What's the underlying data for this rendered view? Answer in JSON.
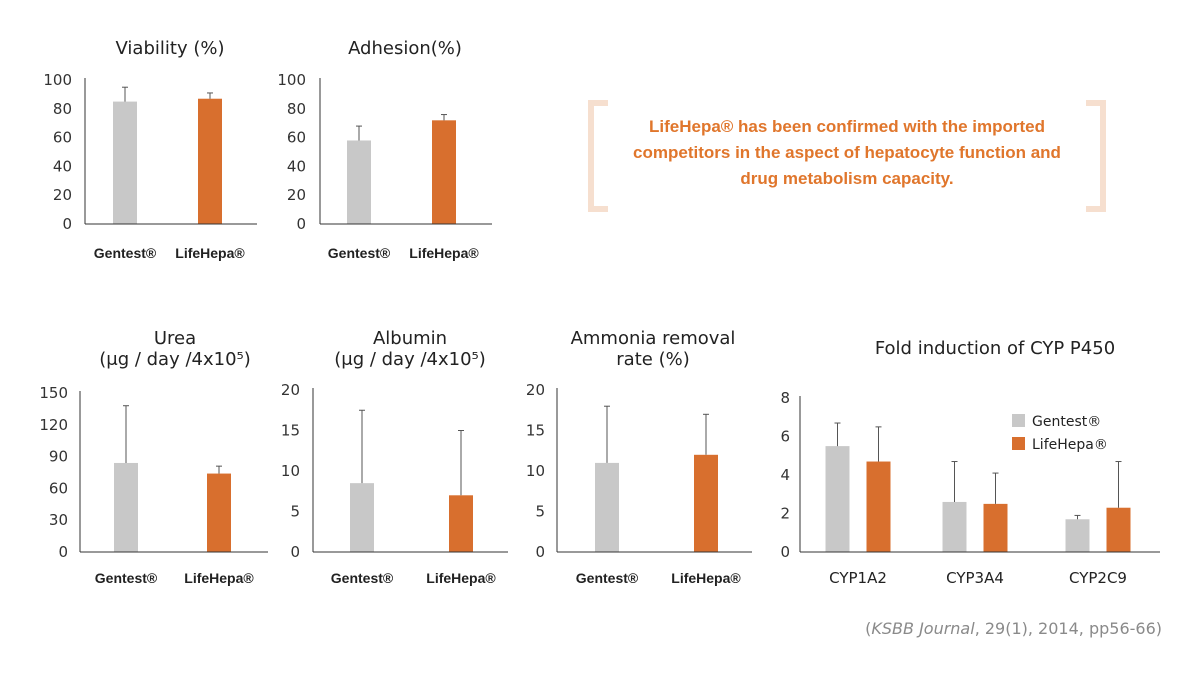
{
  "colors": {
    "gentest": "#c8c8c8",
    "lifehepa": "#d86f2e",
    "accent_text": "#e0762c",
    "bracket": "#f6dfcf"
  },
  "callout": {
    "line1": "LifeHepa® has been confirmed with the imported",
    "line2": "competitors in the aspect of hepatocyte function and",
    "line3": "drug metabolism capacity."
  },
  "source": {
    "open": "(",
    "journal": "KSBB Journal",
    "rest": ", 29(1), 2014, pp56-66)"
  },
  "chart_data": [
    {
      "id": "viability",
      "type": "bar",
      "title": [
        "Viability (%)"
      ],
      "categories": [
        "Gentest®",
        "LifeHepa®"
      ],
      "values": [
        85,
        87
      ],
      "errors": [
        10,
        4
      ],
      "ylim": [
        0,
        100
      ],
      "yticks": [
        0,
        20,
        40,
        60,
        80,
        100
      ]
    },
    {
      "id": "adhesion",
      "type": "bar",
      "title": [
        "Adhesion(%)"
      ],
      "categories": [
        "Gentest®",
        "LifeHepa®"
      ],
      "values": [
        58,
        72
      ],
      "errors": [
        10,
        4
      ],
      "ylim": [
        0,
        100
      ],
      "yticks": [
        0,
        20,
        40,
        60,
        80,
        100
      ]
    },
    {
      "id": "urea",
      "type": "bar",
      "title": [
        "Urea",
        "(μg / day /4x10⁵)"
      ],
      "categories": [
        "Gentest®",
        "LifeHepa®"
      ],
      "values": [
        84,
        74
      ],
      "errors": [
        54,
        7
      ],
      "ylim": [
        0,
        150
      ],
      "yticks": [
        0,
        30,
        60,
        90,
        120,
        150
      ]
    },
    {
      "id": "albumin",
      "type": "bar",
      "title": [
        "Albumin",
        "(μg / day /4x10⁵)"
      ],
      "categories": [
        "Gentest®",
        "LifeHepa®"
      ],
      "values": [
        8.5,
        7
      ],
      "errors": [
        9,
        8
      ],
      "ylim": [
        0,
        20
      ],
      "yticks": [
        0,
        5,
        10,
        15,
        20
      ]
    },
    {
      "id": "ammonia",
      "type": "bar",
      "title": [
        "Ammonia removal",
        "rate (%)"
      ],
      "categories": [
        "Gentest®",
        "LifeHepa®"
      ],
      "values": [
        11,
        12
      ],
      "errors": [
        7,
        5
      ],
      "ylim": [
        0,
        20
      ],
      "yticks": [
        0,
        5,
        10,
        15,
        20
      ]
    },
    {
      "id": "cyp",
      "type": "bar",
      "title": [
        "Fold induction of CYP P450"
      ],
      "categories": [
        "CYP1A2",
        "CYP3A4",
        "CYP2C9"
      ],
      "series": [
        {
          "name": "Gentest®",
          "values": [
            5.5,
            2.6,
            1.7
          ],
          "errors": [
            1.2,
            2.1,
            0.2
          ]
        },
        {
          "name": "LifeHepa®",
          "values": [
            4.7,
            2.5,
            2.3
          ],
          "errors": [
            1.8,
            1.6,
            2.4
          ]
        }
      ],
      "ylim": [
        0,
        8
      ],
      "yticks": [
        0,
        2,
        4,
        6,
        8
      ],
      "legend": "top-right"
    }
  ]
}
